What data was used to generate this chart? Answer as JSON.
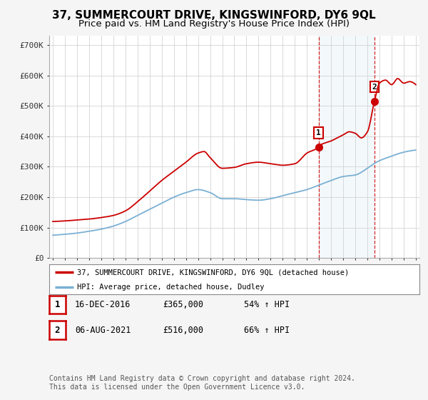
{
  "title": "37, SUMMERCOURT DRIVE, KINGSWINFORD, DY6 9QL",
  "subtitle": "Price paid vs. HM Land Registry's House Price Index (HPI)",
  "ylabel_ticks": [
    "£0",
    "£100K",
    "£200K",
    "£300K",
    "£400K",
    "£500K",
    "£600K",
    "£700K"
  ],
  "ytick_vals": [
    0,
    100000,
    200000,
    300000,
    400000,
    500000,
    600000,
    700000
  ],
  "ylim": [
    0,
    730000
  ],
  "sale1_x": 2016.958,
  "sale1_price": 365000,
  "sale1_label": "16-DEC-2016",
  "sale1_hpi": "54% ↑ HPI",
  "sale2_x": 2021.583,
  "sale2_price": 516000,
  "sale2_label": "06-AUG-2021",
  "sale2_hpi": "66% ↑ HPI",
  "legend_label_red": "37, SUMMERCOURT DRIVE, KINGSWINFORD, DY6 9QL (detached house)",
  "legend_label_blue": "HPI: Average price, detached house, Dudley",
  "footer": "Contains HM Land Registry data © Crown copyright and database right 2024.\nThis data is licensed under the Open Government Licence v3.0.",
  "red_color": "#cc0000",
  "blue_color": "#7ab0d4",
  "vline_color": "#cc0000",
  "background_color": "#f5f5f5",
  "plot_bg": "#ffffff",
  "title_fontsize": 11,
  "subtitle_fontsize": 9.5,
  "tick_fontsize": 8,
  "box_color": "#cc0000",
  "span_color": "#d0e4f0",
  "hpi_ctrl_x": [
    1995,
    1996,
    1997,
    1998,
    1999,
    2000,
    2001,
    2002,
    2003,
    2004,
    2005,
    2006,
    2007,
    2008,
    2009,
    2010,
    2011,
    2012,
    2013,
    2014,
    2015,
    2016,
    2017,
    2018,
    2019,
    2020,
    2021,
    2021.583,
    2022,
    2023,
    2024,
    2025
  ],
  "hpi_ctrl_y": [
    75000,
    78000,
    82000,
    88000,
    95000,
    105000,
    120000,
    140000,
    160000,
    180000,
    200000,
    215000,
    225000,
    215000,
    195000,
    195000,
    192000,
    190000,
    195000,
    205000,
    215000,
    225000,
    240000,
    255000,
    268000,
    273000,
    295000,
    311000,
    320000,
    335000,
    348000,
    355000
  ],
  "red_ctrl_x": [
    1995,
    1996,
    1997,
    1998,
    1999,
    2000,
    2001,
    2002,
    2003,
    2004,
    2005,
    2006,
    2007,
    2007.5,
    2008,
    2009,
    2010,
    2011,
    2012,
    2013,
    2014,
    2015,
    2016,
    2016.958,
    2017,
    2018,
    2019,
    2019.5,
    2020,
    2020.5,
    2021,
    2021.583,
    2022,
    2022.5,
    2023,
    2023.5,
    2024,
    2024.5,
    2025
  ],
  "red_ctrl_y": [
    120000,
    122000,
    125000,
    128000,
    133000,
    140000,
    155000,
    185000,
    220000,
    255000,
    285000,
    315000,
    345000,
    350000,
    330000,
    295000,
    298000,
    310000,
    315000,
    310000,
    305000,
    310000,
    345000,
    365000,
    368000,
    385000,
    405000,
    415000,
    410000,
    395000,
    415000,
    516000,
    575000,
    585000,
    570000,
    590000,
    575000,
    580000,
    570000
  ]
}
